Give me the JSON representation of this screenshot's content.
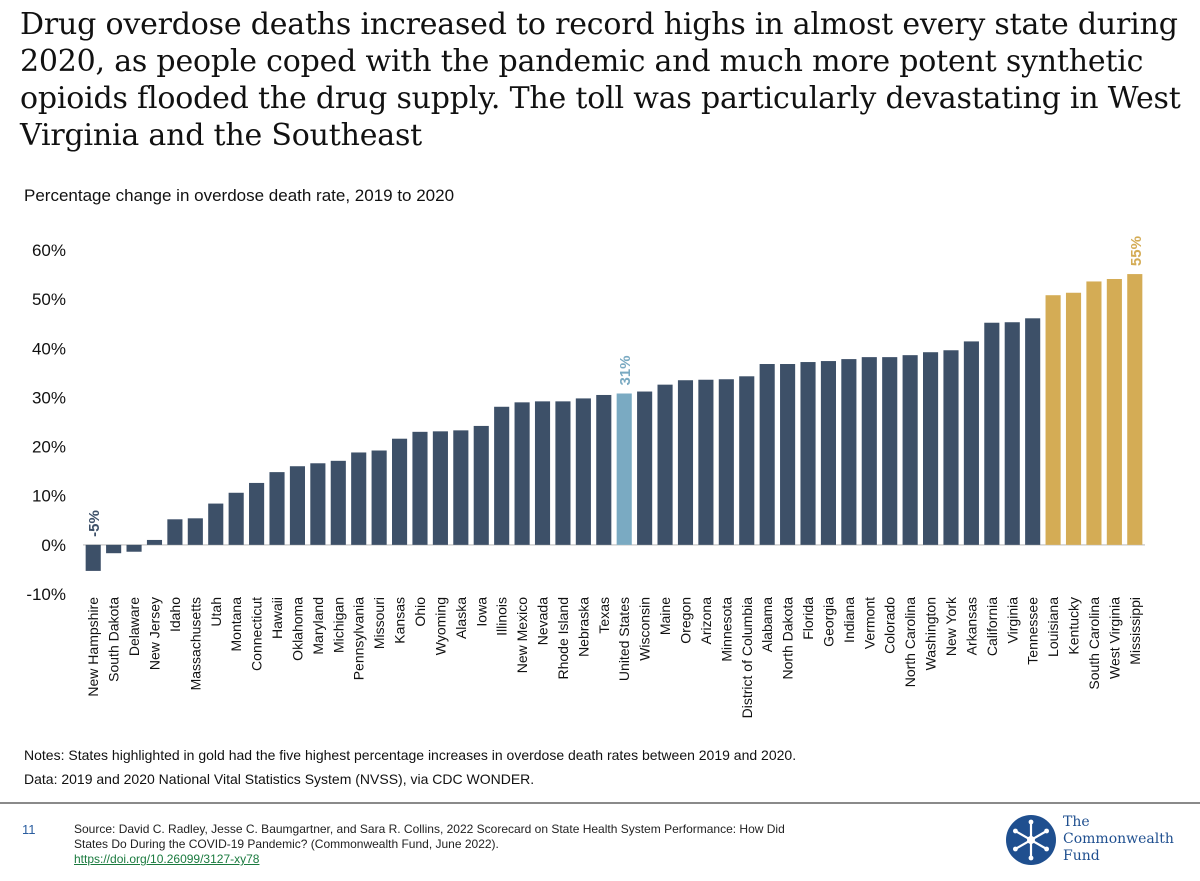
{
  "title": "Drug overdose deaths increased to record highs in almost every state during 2020, as people coped with the pandemic and much more potent synthetic opioids flooded the drug supply. The toll was particularly devastating in West Virginia and the Southeast",
  "notes": {
    "line1": "Notes: States highlighted in gold had the five highest percentage increases in overdose death rates between 2019 and 2020.",
    "line2": "Data: 2019 and 2020 National Vital Statistics System (NVSS), via CDC WONDER."
  },
  "footer": {
    "page_number": "11",
    "source": "Source: David C. Radley, Jesse C. Baumgartner, and Sara R. Collins, 2022 Scorecard on State Health System Performance: How Did States Do During the COVID-19 Pandemic? (Commonwealth Fund, June 2022).",
    "doi": "https://doi.org/10.26099/3127-xy78",
    "logo_line1": "The",
    "logo_line2": "Commonwealth",
    "logo_line3": "Fund"
  },
  "colors": {
    "default_bar": "#3d5068",
    "us_bar": "#7aaac2",
    "top_bar": "#d4ac55",
    "logo": "#1f4f8f"
  },
  "chart_data": {
    "type": "bar",
    "subtitle": "Percentage change in overdose death rate, 2019 to 2020",
    "ylim": [
      -10,
      60
    ],
    "yticks": [
      -10,
      0,
      10,
      20,
      30,
      40,
      50,
      60
    ],
    "ytick_labels": [
      "-10%",
      "0%",
      "10%",
      "20%",
      "30%",
      "40%",
      "50%",
      "60%"
    ],
    "categories": [
      "New Hampshire",
      "South Dakota",
      "Delaware",
      "New Jersey",
      "Idaho",
      "Massachusetts",
      "Utah",
      "Montana",
      "Connecticut",
      "Hawaii",
      "Oklahoma",
      "Maryland",
      "Michigan",
      "Pennsylvania",
      "Missouri",
      "Kansas",
      "Ohio",
      "Wyoming",
      "Alaska",
      "Iowa",
      "Illinois",
      "New Mexico",
      "Nevada",
      "Rhode Island",
      "Nebraska",
      "Texas",
      "United States",
      "Wisconsin",
      "Maine",
      "Oregon",
      "Arizona",
      "Minnesota",
      "District of Columbia",
      "Alabama",
      "North Dakota",
      "Florida",
      "Georgia",
      "Indiana",
      "Vermont",
      "Colorado",
      "North Carolina",
      "Washington",
      "New York",
      "Arkansas",
      "California",
      "Virginia",
      "Tennessee",
      "Louisiana",
      "Kentucky",
      "South Carolina",
      "West Virginia",
      "Mississippi"
    ],
    "values": [
      -5.3,
      -1.7,
      -1.4,
      1.0,
      5.2,
      5.4,
      8.4,
      10.6,
      12.6,
      14.8,
      16.0,
      16.6,
      17.1,
      18.8,
      19.2,
      21.6,
      23.0,
      23.1,
      23.3,
      24.2,
      28.1,
      29.0,
      29.2,
      29.2,
      29.8,
      30.5,
      30.8,
      31.2,
      32.6,
      33.5,
      33.6,
      33.7,
      34.3,
      36.8,
      36.8,
      37.2,
      37.4,
      37.8,
      38.2,
      38.2,
      38.6,
      39.2,
      39.6,
      41.4,
      45.2,
      45.3,
      46.1,
      50.8,
      51.3,
      53.6,
      54.1,
      55.1
    ],
    "highlight_us": [
      "United States"
    ],
    "highlight_top": [
      "Louisiana",
      "Kentucky",
      "South Carolina",
      "West Virginia",
      "Mississippi"
    ],
    "data_labels": [
      {
        "category": "New Hampshire",
        "text": "-5%"
      },
      {
        "category": "United States",
        "text": "31%"
      },
      {
        "category": "Mississippi",
        "text": "55%"
      }
    ]
  }
}
